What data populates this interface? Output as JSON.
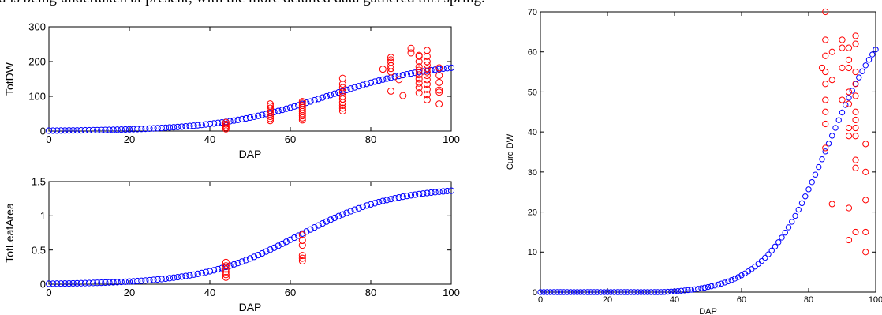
{
  "caption_text": "d is being undertaken at present, with the more detailed data gathered this spring.",
  "colors": {
    "model": "#0000ff",
    "observed": "#ff0000",
    "axis": "#000000"
  },
  "chart_data": [
    {
      "id": "totdw",
      "type": "scatter",
      "title": "",
      "xlabel": "DAP",
      "ylabel": "TotDW",
      "xlim": [
        0,
        100
      ],
      "ylim": [
        0,
        300
      ],
      "xticks": [
        0,
        20,
        40,
        60,
        80,
        100
      ],
      "yticks": [
        0,
        100,
        200,
        300
      ],
      "grid": false,
      "legend": "none",
      "model_curve": {
        "type": "logistic",
        "K": 200,
        "r": 0.075,
        "x0": 69,
        "x_start": 0,
        "x_end": 100,
        "x_step": 1
      },
      "observed": [
        {
          "x": 44,
          "y": 25
        },
        {
          "x": 44,
          "y": 20
        },
        {
          "x": 44,
          "y": 15
        },
        {
          "x": 44,
          "y": 10
        },
        {
          "x": 44,
          "y": 6
        },
        {
          "x": 55,
          "y": 78
        },
        {
          "x": 55,
          "y": 72
        },
        {
          "x": 55,
          "y": 66
        },
        {
          "x": 55,
          "y": 60
        },
        {
          "x": 55,
          "y": 54
        },
        {
          "x": 55,
          "y": 48
        },
        {
          "x": 55,
          "y": 42
        },
        {
          "x": 55,
          "y": 36
        },
        {
          "x": 55,
          "y": 30
        },
        {
          "x": 63,
          "y": 85
        },
        {
          "x": 63,
          "y": 80
        },
        {
          "x": 63,
          "y": 74
        },
        {
          "x": 63,
          "y": 68
        },
        {
          "x": 63,
          "y": 62
        },
        {
          "x": 63,
          "y": 56
        },
        {
          "x": 63,
          "y": 50
        },
        {
          "x": 63,
          "y": 44
        },
        {
          "x": 63,
          "y": 38
        },
        {
          "x": 63,
          "y": 32
        },
        {
          "x": 73,
          "y": 152
        },
        {
          "x": 73,
          "y": 135
        },
        {
          "x": 73,
          "y": 125
        },
        {
          "x": 73,
          "y": 112
        },
        {
          "x": 73,
          "y": 100
        },
        {
          "x": 73,
          "y": 92
        },
        {
          "x": 73,
          "y": 82
        },
        {
          "x": 73,
          "y": 74
        },
        {
          "x": 73,
          "y": 66
        },
        {
          "x": 73,
          "y": 58
        },
        {
          "x": 85,
          "y": 212
        },
        {
          "x": 85,
          "y": 205
        },
        {
          "x": 85,
          "y": 198
        },
        {
          "x": 85,
          "y": 188
        },
        {
          "x": 85,
          "y": 180
        },
        {
          "x": 85,
          "y": 170
        },
        {
          "x": 85,
          "y": 115
        },
        {
          "x": 83,
          "y": 178
        },
        {
          "x": 87,
          "y": 148
        },
        {
          "x": 88,
          "y": 102
        },
        {
          "x": 90,
          "y": 238
        },
        {
          "x": 90,
          "y": 225
        },
        {
          "x": 92,
          "y": 218
        },
        {
          "x": 92,
          "y": 215
        },
        {
          "x": 92,
          "y": 200
        },
        {
          "x": 92,
          "y": 185
        },
        {
          "x": 92,
          "y": 175
        },
        {
          "x": 92,
          "y": 162
        },
        {
          "x": 92,
          "y": 150
        },
        {
          "x": 92,
          "y": 138
        },
        {
          "x": 92,
          "y": 125
        },
        {
          "x": 92,
          "y": 110
        },
        {
          "x": 94,
          "y": 232
        },
        {
          "x": 94,
          "y": 215
        },
        {
          "x": 94,
          "y": 200
        },
        {
          "x": 94,
          "y": 190
        },
        {
          "x": 94,
          "y": 180
        },
        {
          "x": 94,
          "y": 170
        },
        {
          "x": 94,
          "y": 160
        },
        {
          "x": 94,
          "y": 148
        },
        {
          "x": 94,
          "y": 135
        },
        {
          "x": 94,
          "y": 120
        },
        {
          "x": 94,
          "y": 105
        },
        {
          "x": 94,
          "y": 90
        },
        {
          "x": 97,
          "y": 182
        },
        {
          "x": 97,
          "y": 160
        },
        {
          "x": 97,
          "y": 140
        },
        {
          "x": 97,
          "y": 118
        },
        {
          "x": 97,
          "y": 112
        },
        {
          "x": 97,
          "y": 78
        }
      ]
    },
    {
      "id": "totleafarea",
      "type": "scatter",
      "title": "",
      "xlabel": "DAP",
      "ylabel": "TotLeafArea",
      "xlim": [
        0,
        100
      ],
      "ylim": [
        0,
        1.5
      ],
      "xticks": [
        0,
        20,
        40,
        60,
        80,
        100
      ],
      "yticks": [
        0,
        0.5,
        1,
        1.5
      ],
      "grid": false,
      "legend": "none",
      "model_curve": {
        "type": "logistic",
        "K": 1.42,
        "r": 0.085,
        "x0": 62,
        "x_start": 0,
        "x_end": 100,
        "x_step": 1
      },
      "observed": [
        {
          "x": 44,
          "y": 0.32
        },
        {
          "x": 44,
          "y": 0.27
        },
        {
          "x": 44,
          "y": 0.22
        },
        {
          "x": 44,
          "y": 0.18
        },
        {
          "x": 44,
          "y": 0.14
        },
        {
          "x": 44,
          "y": 0.1
        },
        {
          "x": 63,
          "y": 0.72
        },
        {
          "x": 63,
          "y": 0.64
        },
        {
          "x": 63,
          "y": 0.57
        },
        {
          "x": 63,
          "y": 0.42
        },
        {
          "x": 63,
          "y": 0.38
        },
        {
          "x": 63,
          "y": 0.34
        }
      ]
    },
    {
      "id": "curddw",
      "type": "scatter",
      "title": "",
      "xlabel": "DAP",
      "ylabel": "Curd DW",
      "xlim": [
        0,
        100
      ],
      "ylim": [
        0,
        70
      ],
      "xticks": [
        0,
        20,
        40,
        60,
        80,
        100
      ],
      "yticks": [
        0,
        10,
        20,
        30,
        40,
        50,
        60,
        70
      ],
      "grid": false,
      "legend": "none",
      "model_curve": {
        "type": "logistic",
        "K": 75,
        "r": 0.105,
        "x0": 86,
        "offset": -0.4,
        "x_start": 0,
        "x_end": 100,
        "x_step": 1
      },
      "observed": [
        {
          "x": 85,
          "y": 70
        },
        {
          "x": 85,
          "y": 63
        },
        {
          "x": 85,
          "y": 59
        },
        {
          "x": 84,
          "y": 56
        },
        {
          "x": 85,
          "y": 55
        },
        {
          "x": 85,
          "y": 52
        },
        {
          "x": 85,
          "y": 48
        },
        {
          "x": 85,
          "y": 45
        },
        {
          "x": 85,
          "y": 42
        },
        {
          "x": 85,
          "y": 36
        },
        {
          "x": 87,
          "y": 60
        },
        {
          "x": 87,
          "y": 53
        },
        {
          "x": 87,
          "y": 22
        },
        {
          "x": 90,
          "y": 63
        },
        {
          "x": 90,
          "y": 61
        },
        {
          "x": 90,
          "y": 56
        },
        {
          "x": 90,
          "y": 48
        },
        {
          "x": 92,
          "y": 61
        },
        {
          "x": 92,
          "y": 58
        },
        {
          "x": 92,
          "y": 56
        },
        {
          "x": 92,
          "y": 50
        },
        {
          "x": 92,
          "y": 47
        },
        {
          "x": 92,
          "y": 41
        },
        {
          "x": 92,
          "y": 39
        },
        {
          "x": 92,
          "y": 21
        },
        {
          "x": 92,
          "y": 13
        },
        {
          "x": 94,
          "y": 64
        },
        {
          "x": 94,
          "y": 62
        },
        {
          "x": 94,
          "y": 55
        },
        {
          "x": 94,
          "y": 52
        },
        {
          "x": 94,
          "y": 49
        },
        {
          "x": 94,
          "y": 45
        },
        {
          "x": 94,
          "y": 43
        },
        {
          "x": 94,
          "y": 41
        },
        {
          "x": 94,
          "y": 39
        },
        {
          "x": 94,
          "y": 33
        },
        {
          "x": 94,
          "y": 31
        },
        {
          "x": 94,
          "y": 15
        },
        {
          "x": 97,
          "y": 37
        },
        {
          "x": 97,
          "y": 30
        },
        {
          "x": 97,
          "y": 23
        },
        {
          "x": 97,
          "y": 15
        },
        {
          "x": 97,
          "y": 10
        }
      ]
    }
  ]
}
